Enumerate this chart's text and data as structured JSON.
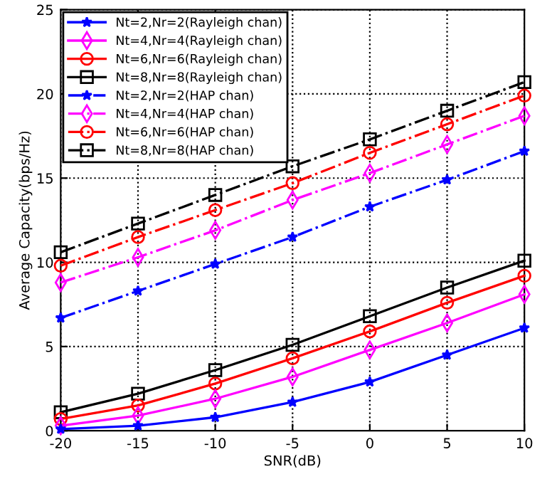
{
  "chart_data": {
    "type": "line",
    "xlabel": "SNR(dB)",
    "ylabel": "Average Capacity(bps/Hz)",
    "x": [
      -20,
      -15,
      -10,
      -5,
      0,
      5,
      10
    ],
    "xlim": [
      -20,
      10
    ],
    "xticks": [
      -20,
      -15,
      -10,
      -5,
      0,
      5,
      10
    ],
    "ylim": [
      0,
      25
    ],
    "yticks": [
      0,
      5,
      10,
      15,
      20,
      25
    ],
    "grid": true,
    "legend": "top left",
    "series": [
      {
        "name": "Nt=2,Nr=2(Rayleigh chan)",
        "color": "#0000ff",
        "marker": "star",
        "line_style": "solid",
        "values": [
          0.1,
          0.3,
          0.8,
          1.7,
          2.9,
          4.5,
          6.1
        ]
      },
      {
        "name": "Nt=4,Nr=4(Rayleigh chan)",
        "color": "#ff00ff",
        "marker": "diamond",
        "line_style": "solid",
        "values": [
          0.3,
          0.9,
          1.9,
          3.2,
          4.8,
          6.4,
          8.1
        ]
      },
      {
        "name": "Nt=6,Nr=6(Rayleigh chan)",
        "color": "#ff0000",
        "marker": "circle",
        "line_style": "solid",
        "values": [
          0.7,
          1.5,
          2.8,
          4.3,
          5.9,
          7.6,
          9.2
        ]
      },
      {
        "name": "Nt=8,Nr=8(Rayleigh chan)",
        "color": "#000000",
        "marker": "square",
        "line_style": "solid",
        "values": [
          1.1,
          2.2,
          3.6,
          5.1,
          6.8,
          8.5,
          10.1
        ]
      },
      {
        "name": "Nt=2,Nr=2(HAP chan)",
        "color": "#0000ff",
        "marker": "star",
        "line_style": "dashdot",
        "values": [
          6.7,
          8.3,
          9.9,
          11.5,
          13.3,
          14.9,
          16.6
        ]
      },
      {
        "name": "Nt=4,Nr=4(HAP chan)",
        "color": "#ff00ff",
        "marker": "diamond",
        "line_style": "dashdot",
        "values": [
          8.8,
          10.3,
          11.9,
          13.7,
          15.3,
          17.0,
          18.7
        ]
      },
      {
        "name": "Nt=6,Nr=6(HAP chan)",
        "color": "#ff0000",
        "marker": "circle",
        "line_style": "dashdot",
        "values": [
          9.8,
          11.5,
          13.1,
          14.7,
          16.5,
          18.2,
          19.9
        ]
      },
      {
        "name": "Nt=8,Nr=8(HAP chan)",
        "color": "#000000",
        "marker": "square",
        "line_style": "dashdot",
        "values": [
          10.6,
          12.3,
          14.0,
          15.7,
          17.3,
          19.0,
          20.7
        ]
      }
    ]
  }
}
